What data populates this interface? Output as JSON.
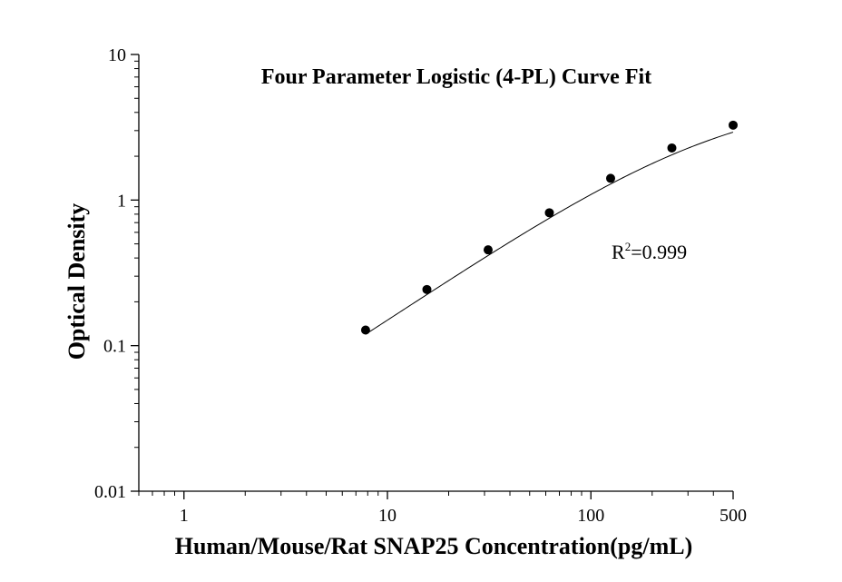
{
  "chart_data": {
    "type": "scatter",
    "title": "Four Parameter Logistic (4-PL) Curve Fit",
    "xlabel": "Human/Mouse/Rat SNAP25 Concentration(pg/mL)",
    "ylabel": "Optical Density",
    "x_scale": "log",
    "y_scale": "log",
    "xlim": [
      0.6,
      500
    ],
    "ylim": [
      0.01,
      10
    ],
    "x_ticks": [
      {
        "value": 1,
        "label": "1"
      },
      {
        "value": 10,
        "label": "10"
      },
      {
        "value": 100,
        "label": "100"
      },
      {
        "value": 500,
        "label": "500"
      }
    ],
    "y_ticks": [
      {
        "value": 0.01,
        "label": "0.01"
      },
      {
        "value": 0.1,
        "label": "0.1"
      },
      {
        "value": 1,
        "label": "1"
      },
      {
        "value": 10,
        "label": "10"
      }
    ],
    "grid": false,
    "series": [
      {
        "x": [
          7.81,
          15.63,
          31.25,
          62.5,
          125,
          250,
          500
        ],
        "y": [
          0.128,
          0.243,
          0.455,
          0.818,
          1.41,
          2.28,
          3.27
        ]
      }
    ],
    "fit_curve": {
      "model": "4-PL",
      "a": 0.0045,
      "b": 0.96,
      "c": 420,
      "d": 5.4,
      "color": "#000000"
    },
    "annotation": {
      "label": "R",
      "superscript": "2",
      "value": "=0.999"
    },
    "colors": {
      "points": "#000000",
      "axes": "#000000"
    }
  }
}
